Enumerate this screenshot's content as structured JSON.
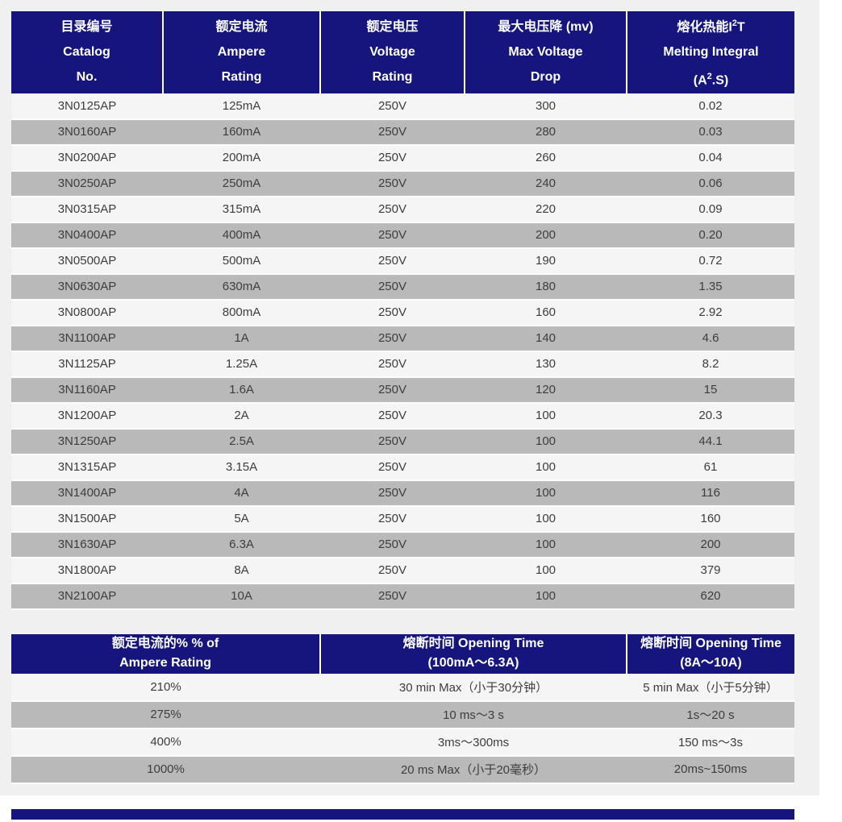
{
  "colors": {
    "header_bg": "#15157d",
    "row_gray": "#b9b9b9",
    "row_light": "#f5f5f5",
    "page_backdrop": "#f0f0f0",
    "header_text": "#ffffff",
    "body_text": "#3d3d3d"
  },
  "table1": {
    "columns": [
      {
        "lines": [
          "目录编号",
          "Catalog",
          "No."
        ]
      },
      {
        "lines": [
          "额定电流",
          "Ampere",
          "Rating"
        ]
      },
      {
        "lines": [
          "额定电压",
          "Voltage",
          "Rating"
        ]
      },
      {
        "lines": [
          "最大电压降 (mv)",
          "Max Voltage",
          "Drop"
        ]
      },
      {
        "line1_pre": "熔化热能I",
        "line1_sup": "2",
        "line1_post": "T",
        "line2": "Melting Integral",
        "line3_pre": "(A",
        "line3_sup": "2",
        "line3_post": ".S)"
      }
    ],
    "rows": [
      [
        "3N0125AP",
        "125mA",
        "250V",
        "300",
        "0.02"
      ],
      [
        "3N0160AP",
        "160mA",
        "250V",
        "280",
        "0.03"
      ],
      [
        "3N0200AP",
        "200mA",
        "250V",
        "260",
        "0.04"
      ],
      [
        "3N0250AP",
        "250mA",
        "250V",
        "240",
        "0.06"
      ],
      [
        "3N0315AP",
        "315mA",
        "250V",
        "220",
        "0.09"
      ],
      [
        "3N0400AP",
        "400mA",
        "250V",
        "200",
        "0.20"
      ],
      [
        "3N0500AP",
        "500mA",
        "250V",
        "190",
        "0.72"
      ],
      [
        "3N0630AP",
        "630mA",
        "250V",
        "180",
        "1.35"
      ],
      [
        "3N0800AP",
        "800mA",
        "250V",
        "160",
        "2.92"
      ],
      [
        "3N1100AP",
        "1A",
        "250V",
        "140",
        "4.6"
      ],
      [
        "3N1125AP",
        "1.25A",
        "250V",
        "130",
        "8.2"
      ],
      [
        "3N1160AP",
        "1.6A",
        "250V",
        "120",
        "15"
      ],
      [
        "3N1200AP",
        "2A",
        "250V",
        "100",
        "20.3"
      ],
      [
        "3N1250AP",
        "2.5A",
        "250V",
        "100",
        "44.1"
      ],
      [
        "3N1315AP",
        "3.15A",
        "250V",
        "100",
        "61"
      ],
      [
        "3N1400AP",
        "4A",
        "250V",
        "100",
        "116"
      ],
      [
        "3N1500AP",
        "5A",
        "250V",
        "100",
        "160"
      ],
      [
        "3N1630AP",
        "6.3A",
        "250V",
        "100",
        "200"
      ],
      [
        "3N1800AP",
        "8A",
        "250V",
        "100",
        "379"
      ],
      [
        "3N2100AP",
        "10A",
        "250V",
        "100",
        "620"
      ]
    ]
  },
  "table2": {
    "columns": [
      {
        "lines": [
          "额定电流的% % of",
          "Ampere Rating"
        ]
      },
      {
        "lines": [
          "熔断时间 Opening Time",
          "(100mA～6.3A)"
        ]
      },
      {
        "lines": [
          "熔断时间 Opening Time",
          "(8A～10A)"
        ]
      }
    ],
    "rows": [
      [
        "210%",
        "30 min Max（小于30分钟）",
        "5 min Max（小于5分钟）"
      ],
      [
        "275%",
        "10 ms～3 s",
        "1s～20 s"
      ],
      [
        "400%",
        "3ms～300ms",
        "150 ms～3s"
      ],
      [
        "1000%",
        "20 ms Max（小于20毫秒）",
        "20ms~150ms"
      ]
    ]
  }
}
